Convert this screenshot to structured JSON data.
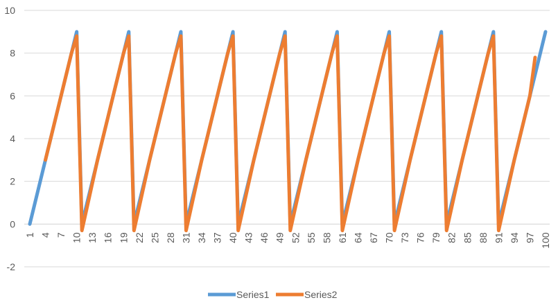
{
  "chart_data": {
    "type": "line",
    "title": "",
    "xlabel": "",
    "ylabel": "",
    "ylim": [
      -2,
      10
    ],
    "y_ticks": [
      -2,
      0,
      2,
      4,
      6,
      8,
      10
    ],
    "x": [
      1,
      2,
      3,
      4,
      5,
      6,
      7,
      8,
      9,
      10,
      11,
      12,
      13,
      14,
      15,
      16,
      17,
      18,
      19,
      20,
      21,
      22,
      23,
      24,
      25,
      26,
      27,
      28,
      29,
      30,
      31,
      32,
      33,
      34,
      35,
      36,
      37,
      38,
      39,
      40,
      41,
      42,
      43,
      44,
      45,
      46,
      47,
      48,
      49,
      50,
      51,
      52,
      53,
      54,
      55,
      56,
      57,
      58,
      59,
      60,
      61,
      62,
      63,
      64,
      65,
      66,
      67,
      68,
      69,
      70,
      71,
      72,
      73,
      74,
      75,
      76,
      77,
      78,
      79,
      80,
      81,
      82,
      83,
      84,
      85,
      86,
      87,
      88,
      89,
      90,
      91,
      92,
      93,
      94,
      95,
      96,
      97,
      98,
      99,
      100
    ],
    "x_tick_labels": [
      "1",
      "4",
      "7",
      "10",
      "13",
      "16",
      "19",
      "22",
      "25",
      "28",
      "31",
      "34",
      "37",
      "40",
      "43",
      "46",
      "49",
      "52",
      "55",
      "58",
      "61",
      "64",
      "67",
      "70",
      "73",
      "76",
      "79",
      "82",
      "85",
      "88",
      "91",
      "94",
      "97",
      "100"
    ],
    "grid": true,
    "legend_position": "bottom",
    "series": [
      {
        "name": "Series1",
        "color": "#5b9bd5",
        "values": [
          0,
          1,
          2,
          3,
          4,
          5,
          6,
          7,
          8,
          9,
          0,
          1,
          2,
          3,
          4,
          5,
          6,
          7,
          8,
          9,
          0,
          1,
          2,
          3,
          4,
          5,
          6,
          7,
          8,
          9,
          0,
          1,
          2,
          3,
          4,
          5,
          6,
          7,
          8,
          9,
          0,
          1,
          2,
          3,
          4,
          5,
          6,
          7,
          8,
          9,
          0,
          1,
          2,
          3,
          4,
          5,
          6,
          7,
          8,
          9,
          0,
          1,
          2,
          3,
          4,
          5,
          6,
          7,
          8,
          9,
          0,
          1,
          2,
          3,
          4,
          5,
          6,
          7,
          8,
          9,
          0,
          1,
          2,
          3,
          4,
          5,
          6,
          7,
          8,
          9,
          0,
          1,
          2,
          3,
          4,
          5,
          6,
          7,
          8,
          9
        ]
      },
      {
        "name": "Series2",
        "color": "#ed7d31",
        "values": [
          null,
          null,
          null,
          3,
          4,
          5,
          6,
          7,
          8,
          8.8,
          -0.3,
          0.8,
          1.9,
          3,
          4,
          5,
          6,
          7,
          8,
          8.8,
          -0.3,
          0.8,
          1.9,
          3,
          4,
          5,
          6,
          7,
          8,
          8.8,
          -0.3,
          0.8,
          1.9,
          3,
          4,
          5,
          6,
          7,
          8,
          8.8,
          -0.3,
          0.8,
          1.9,
          3,
          4,
          5,
          6,
          7,
          8,
          8.8,
          -0.3,
          0.8,
          1.9,
          3,
          4,
          5,
          6,
          7,
          8,
          8.8,
          -0.3,
          0.8,
          1.9,
          3,
          4,
          5,
          6,
          7,
          8,
          8.8,
          -0.3,
          0.8,
          1.9,
          3,
          4,
          5,
          6,
          7,
          8,
          8.8,
          -0.3,
          0.8,
          1.9,
          3,
          4,
          5,
          6,
          7,
          8,
          8.8,
          -0.3,
          0.8,
          1.9,
          3,
          4,
          5,
          6,
          7.8,
          null,
          null
        ]
      }
    ]
  }
}
